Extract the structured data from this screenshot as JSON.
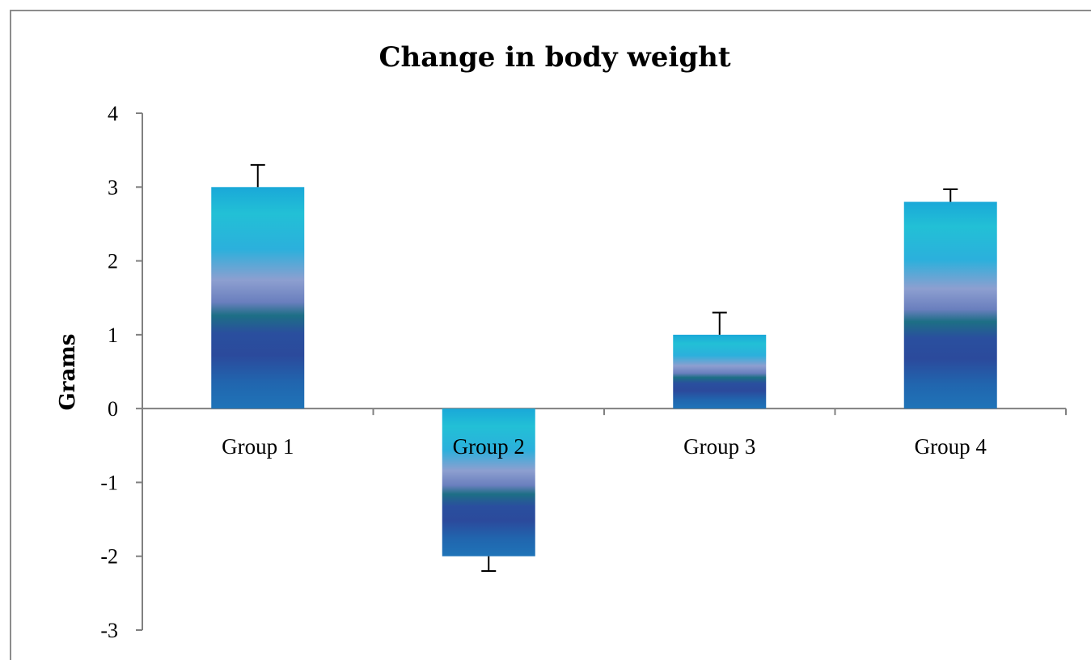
{
  "chart_data": {
    "type": "bar",
    "title": "Change in body weight",
    "xlabel": "",
    "ylabel": "Grams",
    "categories": [
      "Group 1",
      "Group 2",
      "Group 3",
      "Group 4"
    ],
    "values": [
      3.0,
      -2.0,
      1.0,
      2.8
    ],
    "error": [
      0.3,
      0.2,
      0.3,
      0.17
    ],
    "ylim": [
      -3,
      4
    ],
    "yticks": [
      "4",
      "3",
      "2",
      "1",
      "0",
      "-1",
      "-2",
      "-3"
    ],
    "grid": false,
    "legend": "none",
    "colors": {
      "bar_top": "#1ab6d6",
      "bar_mid": "#9a9ccc",
      "bar_dark": "#1f4e9a",
      "bar_bottom": "#1f6fb4",
      "axis": "#808080",
      "error_bar": "#000000"
    }
  }
}
